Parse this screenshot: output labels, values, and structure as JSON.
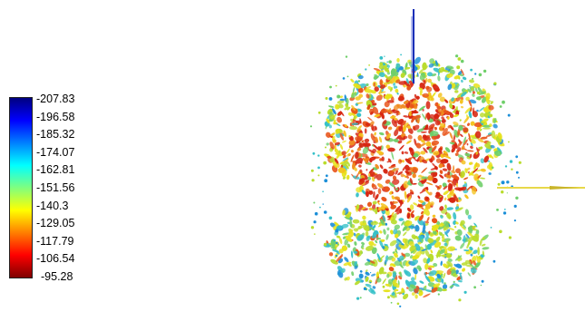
{
  "colorbar": {
    "labels": [
      "-207.83",
      "-196.58",
      "-185.32",
      "-174.07",
      "-162.81",
      "-151.56",
      "-140.3",
      "-129.05",
      "-117.79",
      "-106.54",
      "-95.28"
    ],
    "gradient": [
      "#00007f",
      "#0000ff",
      "#007fff",
      "#00ffff",
      "#7fff7f",
      "#ffff00",
      "#ff7f00",
      "#ff0000",
      "#7f0000"
    ]
  },
  "render": {
    "palette": [
      "#d62410",
      "#e8541a",
      "#f08a1e",
      "#f4c21c",
      "#e6e21a",
      "#b9dc2c",
      "#6fcf6a",
      "#35c0c8",
      "#1c8fd8",
      "#0b44b8"
    ],
    "axis_colors": {
      "vertical": "#1a2fb8",
      "horizontal": "#e8d84a"
    }
  }
}
